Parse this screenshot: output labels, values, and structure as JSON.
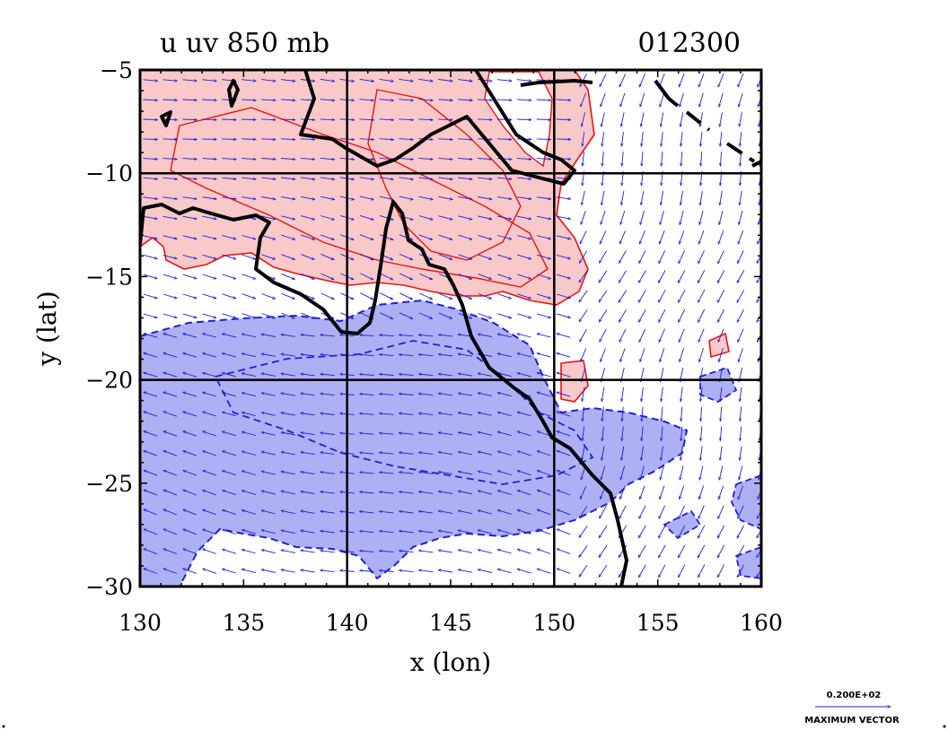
{
  "title": {
    "field": "u uv 850 mb",
    "date": "012300"
  },
  "chart_data": {
    "type": "map-contour-vector",
    "xlabel": "x (lon)",
    "ylabel": "y (lat)",
    "xlim": [
      130,
      160
    ],
    "ylim": [
      -30,
      -5
    ],
    "x_ticks": [
      "130",
      "135",
      "140",
      "145",
      "150",
      "155",
      "160"
    ],
    "y_ticks": [
      "-5",
      "-10",
      "-15",
      "-20",
      "-25",
      "-30"
    ],
    "grid_lines": {
      "lon": [
        140,
        150
      ],
      "lat": [
        -10,
        -20
      ]
    },
    "colors": {
      "positive_fill": "#f9c9c9",
      "positive_line": "#ee1111",
      "negative_fill": "#aeb0f4",
      "negative_line": "#1f1fd6",
      "vector": "#1f1fd6",
      "coast": "#000000"
    }
  },
  "legend": {
    "max_label": "0.200E+02",
    "caption": "MAXIMUM VECTOR"
  }
}
